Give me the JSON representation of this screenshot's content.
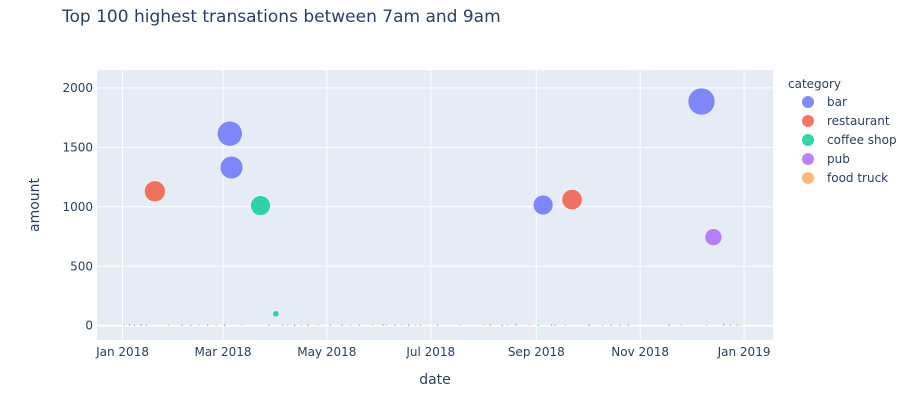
{
  "chart_data": {
    "type": "scatter",
    "title": "Top 100 highest transations between 7am and 9am",
    "xlabel": "date",
    "ylabel": "amount",
    "x_type": "date",
    "xlim": [
      "2017-12-17",
      "2019-01-18"
    ],
    "ylim": [
      -120,
      2150
    ],
    "x_ticks": [
      "2018-01-01",
      "2018-03-01",
      "2018-05-01",
      "2018-07-01",
      "2018-09-01",
      "2018-11-01",
      "2019-01-01"
    ],
    "x_tick_labels": [
      "Jan 2018",
      "Mar 2018",
      "May 2018",
      "Jul 2018",
      "Sep 2018",
      "Nov 2018",
      "Jan 2019"
    ],
    "y_ticks": [
      0,
      500,
      1000,
      1500,
      2000
    ],
    "y_tick_labels": [
      "0",
      "500",
      "1000",
      "1500",
      "2000"
    ],
    "grid": true,
    "legend": {
      "title": "category",
      "position": "right"
    },
    "series": [
      {
        "name": "bar",
        "color": "#636efa",
        "points": [
          {
            "x": "2018-03-05",
            "y": 1615
          },
          {
            "x": "2018-03-06",
            "y": 1330
          },
          {
            "x": "2018-09-05",
            "y": 1015
          },
          {
            "x": "2018-12-07",
            "y": 1885
          },
          {
            "x": "2018-01-12",
            "y": 8
          },
          {
            "x": "2018-02-05",
            "y": 6
          },
          {
            "x": "2018-03-02",
            "y": 5
          },
          {
            "x": "2018-04-12",
            "y": 4
          },
          {
            "x": "2018-05-10",
            "y": 6
          },
          {
            "x": "2018-06-18",
            "y": 5
          },
          {
            "x": "2018-08-20",
            "y": 7
          },
          {
            "x": "2018-10-02",
            "y": 5
          },
          {
            "x": "2018-10-25",
            "y": 6
          },
          {
            "x": "2018-12-20",
            "y": 8
          }
        ]
      },
      {
        "name": "restaurant",
        "color": "#ef553b",
        "points": [
          {
            "x": "2018-01-20",
            "y": 1130
          },
          {
            "x": "2018-09-22",
            "y": 1060
          },
          {
            "x": "2018-01-05",
            "y": 7
          },
          {
            "x": "2018-02-20",
            "y": 6
          },
          {
            "x": "2018-04-20",
            "y": 5
          },
          {
            "x": "2018-06-03",
            "y": 8
          },
          {
            "x": "2018-06-25",
            "y": 6
          },
          {
            "x": "2018-08-05",
            "y": 7
          },
          {
            "x": "2018-09-10",
            "y": 6
          },
          {
            "x": "2018-11-18",
            "y": 5
          },
          {
            "x": "2018-12-28",
            "y": 6
          }
        ]
      },
      {
        "name": "coffee shop",
        "color": "#00cc96",
        "points": [
          {
            "x": "2018-03-23",
            "y": 1010
          },
          {
            "x": "2018-04-01",
            "y": 100
          },
          {
            "x": "2018-01-08",
            "y": 5
          },
          {
            "x": "2018-02-10",
            "y": 4
          },
          {
            "x": "2018-03-28",
            "y": 6
          },
          {
            "x": "2018-05-03",
            "y": 5
          },
          {
            "x": "2018-07-05",
            "y": 4
          },
          {
            "x": "2018-09-02",
            "y": 5
          },
          {
            "x": "2018-09-12",
            "y": 6
          },
          {
            "x": "2018-10-15",
            "y": 4
          }
        ]
      },
      {
        "name": "pub",
        "color": "#ab63fa",
        "points": [
          {
            "x": "2018-12-14",
            "y": 745
          },
          {
            "x": "2018-01-15",
            "y": 5
          },
          {
            "x": "2018-04-05",
            "y": 4
          },
          {
            "x": "2018-05-20",
            "y": 6
          },
          {
            "x": "2018-06-10",
            "y": 5
          },
          {
            "x": "2018-08-12",
            "y": 4
          },
          {
            "x": "2018-10-20",
            "y": 6
          },
          {
            "x": "2018-12-24",
            "y": 5
          }
        ]
      },
      {
        "name": "food truck",
        "color": "#ffa15a",
        "points": [
          {
            "x": "2018-01-02",
            "y": 9
          },
          {
            "x": "2018-01-28",
            "y": 7
          },
          {
            "x": "2018-02-15",
            "y": 8
          },
          {
            "x": "2018-02-25",
            "y": 6
          },
          {
            "x": "2018-03-12",
            "y": 9
          },
          {
            "x": "2018-04-08",
            "y": 7
          },
          {
            "x": "2018-04-16",
            "y": 6
          },
          {
            "x": "2018-04-26",
            "y": 8
          },
          {
            "x": "2018-05-15",
            "y": 5
          },
          {
            "x": "2018-05-28",
            "y": 9
          },
          {
            "x": "2018-06-05",
            "y": 7
          },
          {
            "x": "2018-06-14",
            "y": 8
          },
          {
            "x": "2018-06-22",
            "y": 6
          },
          {
            "x": "2018-07-18",
            "y": 7
          },
          {
            "x": "2018-08-01",
            "y": 9
          },
          {
            "x": "2018-08-15",
            "y": 6
          },
          {
            "x": "2018-08-28",
            "y": 8
          },
          {
            "x": "2018-09-18",
            "y": 7
          },
          {
            "x": "2018-10-10",
            "y": 5
          },
          {
            "x": "2018-11-25",
            "y": 8
          },
          {
            "x": "2018-12-10",
            "y": 6
          },
          {
            "x": "2018-12-30",
            "y": 7
          }
        ]
      }
    ]
  }
}
